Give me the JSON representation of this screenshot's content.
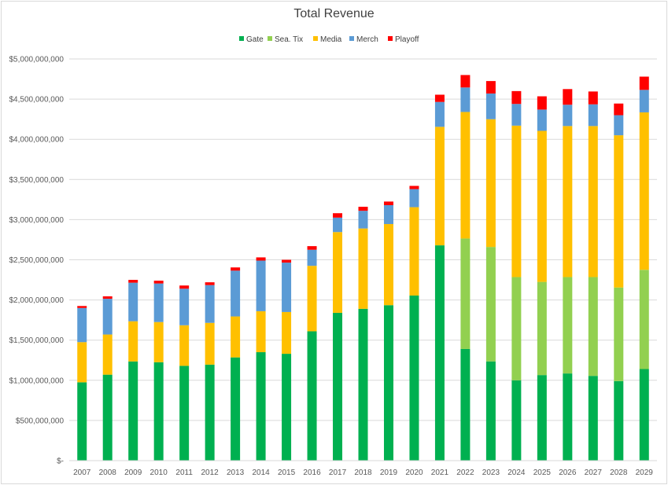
{
  "chart_data": {
    "type": "bar",
    "stacked": true,
    "title": "Total Revenue",
    "xlabel": "",
    "ylabel": "",
    "ylim": [
      0,
      5000000000
    ],
    "grid": true,
    "legend_position": "top",
    "yticks": [
      "$-",
      "$500,000,000",
      "$1,000,000,000",
      "$1,500,000,000",
      "$2,000,000,000",
      "$2,500,000,000",
      "$3,000,000,000",
      "$3,500,000,000",
      "$4,000,000,000",
      "$4,500,000,000",
      "$5,000,000,000"
    ],
    "categories": [
      "2007",
      "2008",
      "2009",
      "2010",
      "2011",
      "2012",
      "2013",
      "2014",
      "2015",
      "2016",
      "2017",
      "2018",
      "2019",
      "2020",
      "2021",
      "2022",
      "2023",
      "2024",
      "2025",
      "2026",
      "2027",
      "2028",
      "2029"
    ],
    "series": [
      {
        "name": "Gate",
        "color": "#00b050",
        "values": [
          975000000,
          1070000000,
          1235000000,
          1225000000,
          1180000000,
          1195000000,
          1285000000,
          1350000000,
          1330000000,
          1610000000,
          1840000000,
          1890000000,
          1935000000,
          2055000000,
          2680000000,
          1390000000,
          1235000000,
          1000000000,
          1065000000,
          1085000000,
          1055000000,
          990000000,
          1140000000
        ]
      },
      {
        "name": "Sea. Tix",
        "color": "#92d050",
        "values": [
          0,
          0,
          0,
          0,
          0,
          0,
          0,
          0,
          0,
          0,
          0,
          0,
          0,
          0,
          0,
          1375000000,
          1425000000,
          1285000000,
          1160000000,
          1200000000,
          1230000000,
          1165000000,
          1235000000
        ]
      },
      {
        "name": "Media",
        "color": "#ffc000",
        "values": [
          500000000,
          500000000,
          500000000,
          500000000,
          505000000,
          520000000,
          510000000,
          510000000,
          520000000,
          815000000,
          1005000000,
          1000000000,
          1010000000,
          1100000000,
          1475000000,
          1575000000,
          1590000000,
          1885000000,
          1880000000,
          1880000000,
          1880000000,
          1895000000,
          1960000000
        ]
      },
      {
        "name": "Merch",
        "color": "#5b9bd5",
        "values": [
          425000000,
          445000000,
          480000000,
          480000000,
          455000000,
          470000000,
          570000000,
          630000000,
          615000000,
          200000000,
          180000000,
          220000000,
          235000000,
          225000000,
          310000000,
          305000000,
          320000000,
          270000000,
          265000000,
          265000000,
          270000000,
          250000000,
          280000000
        ]
      },
      {
        "name": "Playoff",
        "color": "#ff0000",
        "values": [
          25000000,
          30000000,
          35000000,
          35000000,
          40000000,
          35000000,
          40000000,
          40000000,
          35000000,
          45000000,
          55000000,
          50000000,
          45000000,
          40000000,
          90000000,
          155000000,
          155000000,
          160000000,
          165000000,
          195000000,
          160000000,
          145000000,
          165000000
        ]
      }
    ]
  }
}
